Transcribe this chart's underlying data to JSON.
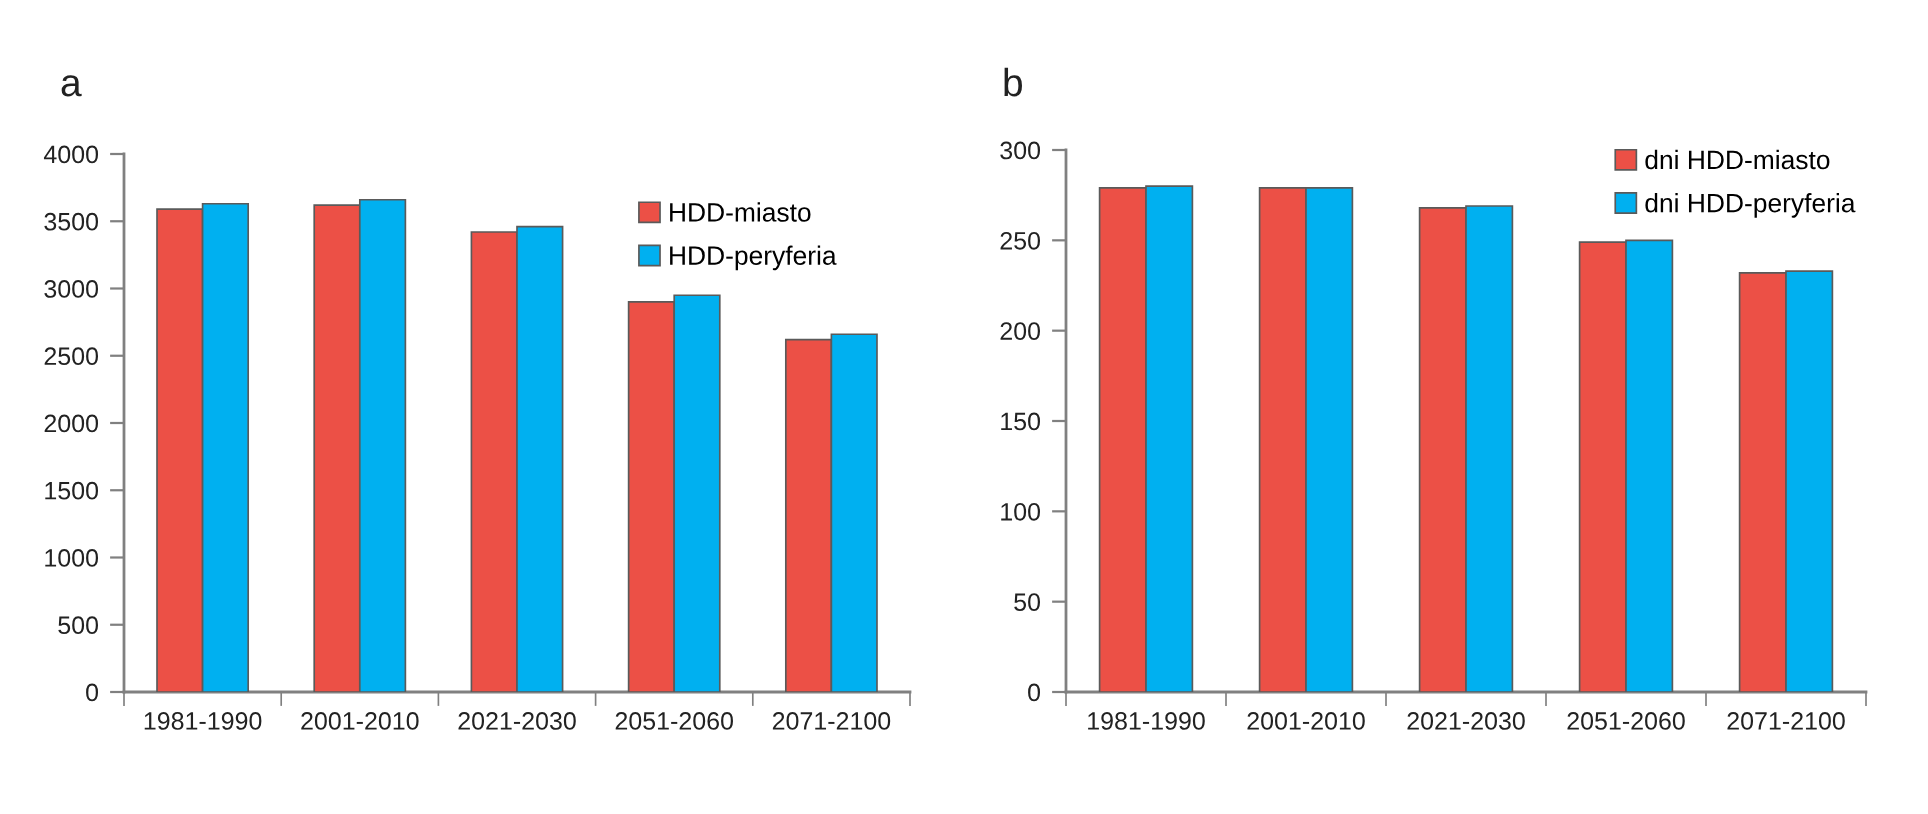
{
  "chart_data": [
    {
      "type": "bar",
      "title": "a",
      "categories": [
        "1981-1990",
        "2001-2010",
        "2021-2030",
        "2051-2060",
        "2071-2100"
      ],
      "series": [
        {
          "name": "HDD-miasto",
          "color": "#ec5046",
          "values": [
            3590,
            3620,
            3420,
            2900,
            2620
          ]
        },
        {
          "name": "HDD-peryferia",
          "color": "#00b0f0",
          "values": [
            3630,
            3660,
            3460,
            2950,
            2660
          ]
        }
      ],
      "ylim": [
        0,
        4000
      ],
      "yticks": [
        0,
        500,
        1000,
        1500,
        2000,
        2500,
        3000,
        3500,
        4000
      ],
      "grid": false,
      "legend": "top right"
    },
    {
      "type": "bar",
      "title": "b",
      "categories": [
        "1981-1990",
        "2001-2010",
        "2021-2030",
        "2051-2060",
        "2071-2100"
      ],
      "series": [
        {
          "name": "dni HDD-miasto",
          "color": "#ec5046",
          "values": [
            279,
            279,
            268,
            249,
            232
          ]
        },
        {
          "name": "dni HDD-peryferia",
          "color": "#00b0f0",
          "values": [
            280,
            279,
            269,
            250,
            233
          ]
        }
      ],
      "ylim": [
        0,
        300
      ],
      "yticks": [
        0,
        50,
        100,
        150,
        200,
        250,
        300
      ],
      "grid": false,
      "legend": "top right"
    }
  ]
}
